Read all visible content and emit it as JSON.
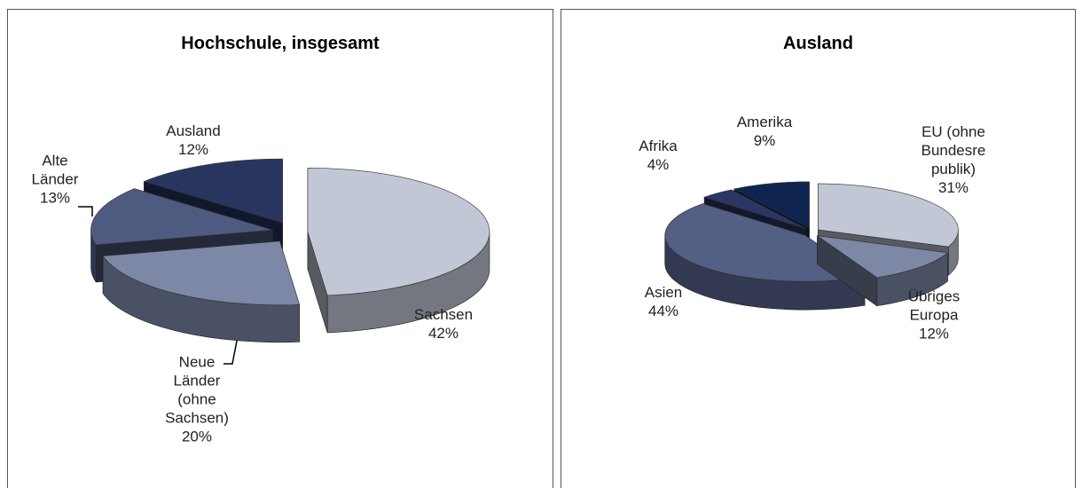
{
  "chart_data": [
    {
      "type": "pie3d",
      "title": "Hochschule, insgesamt",
      "categories": [
        "Sachsen",
        "Neue\nLänder\n(ohne\nSachsen)",
        "Alte\nLänder",
        "Ausland"
      ],
      "values": [
        42,
        20,
        13,
        12
      ],
      "value_labels": [
        "42%",
        "20%",
        "13%",
        "12%"
      ],
      "colors": [
        "#c1c7d5",
        "#7d87a6",
        "#4f5a80",
        "#28365f"
      ]
    },
    {
      "type": "pie3d",
      "title": "Ausland",
      "categories": [
        "EU (ohne\nBundesre\npublik)",
        "Übriges\nEuropa",
        "Asien",
        "Afrika",
        "Amerika"
      ],
      "values": [
        31,
        12,
        44,
        4,
        9
      ],
      "value_labels": [
        "31%",
        "12%",
        "44%",
        "4%",
        "9%"
      ],
      "colors": [
        "#c1c7d5",
        "#7d87a6",
        "#545f86",
        "#2b3664",
        "#0f2550"
      ]
    }
  ]
}
